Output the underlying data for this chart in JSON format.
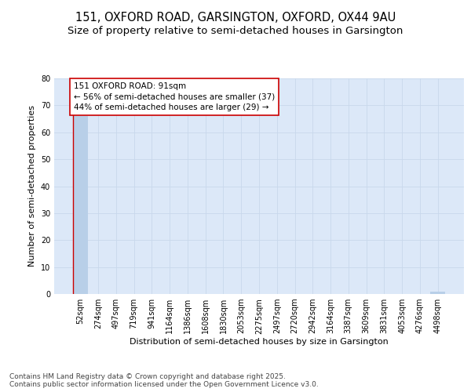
{
  "title": "151, OXFORD ROAD, GARSINGTON, OXFORD, OX44 9AU",
  "subtitle": "Size of property relative to semi-detached houses in Garsington",
  "xlabel": "Distribution of semi-detached houses by size in Garsington",
  "ylabel": "Number of semi-detached properties",
  "categories": [
    "52sqm",
    "274sqm",
    "497sqm",
    "719sqm",
    "941sqm",
    "1164sqm",
    "1386sqm",
    "1608sqm",
    "1830sqm",
    "2053sqm",
    "2275sqm",
    "2497sqm",
    "2720sqm",
    "2942sqm",
    "3164sqm",
    "3387sqm",
    "3609sqm",
    "3831sqm",
    "4053sqm",
    "4276sqm",
    "4498sqm"
  ],
  "values": [
    66,
    0,
    0,
    0,
    0,
    0,
    0,
    0,
    0,
    0,
    0,
    0,
    0,
    0,
    0,
    0,
    0,
    0,
    0,
    0,
    1
  ],
  "bar_color": "#b8cfe8",
  "subject_line_bin_index": 0,
  "subject_line_color": "#cc0000",
  "annotation_text": "151 OXFORD ROAD: 91sqm\n← 56% of semi-detached houses are smaller (37)\n44% of semi-detached houses are larger (29) →",
  "annotation_box_color": "#cc0000",
  "ylim": [
    0,
    80
  ],
  "yticks": [
    0,
    10,
    20,
    30,
    40,
    50,
    60,
    70,
    80
  ],
  "grid_color": "#c8d8ec",
  "background_color": "#dce8f8",
  "footer_text": "Contains HM Land Registry data © Crown copyright and database right 2025.\nContains public sector information licensed under the Open Government Licence v3.0.",
  "title_fontsize": 10.5,
  "subtitle_fontsize": 9.5,
  "ylabel_fontsize": 8,
  "xlabel_fontsize": 8,
  "tick_fontsize": 7,
  "annotation_fontsize": 7.5,
  "footer_fontsize": 6.5
}
